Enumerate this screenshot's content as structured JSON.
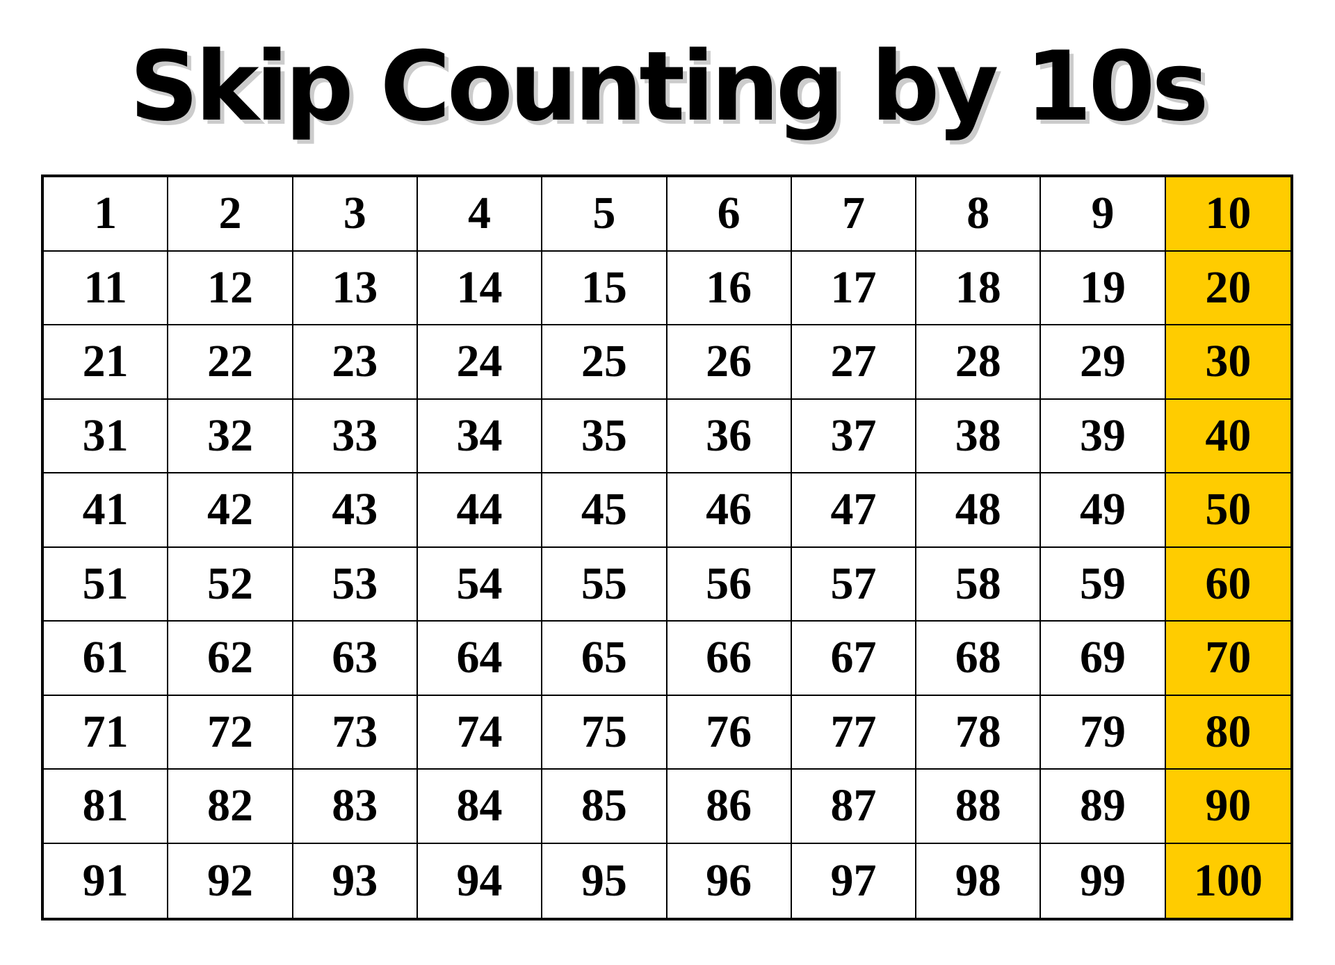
{
  "title": "Skip Counting by 10s",
  "colors": {
    "highlight": "#FFCC00",
    "border": "#000000",
    "title_shadow": "#CCCCCC"
  },
  "grid": {
    "highlight_column": 10,
    "rows": [
      [
        "1",
        "2",
        "3",
        "4",
        "5",
        "6",
        "7",
        "8",
        "9",
        "10"
      ],
      [
        "11",
        "12",
        "13",
        "14",
        "15",
        "16",
        "17",
        "18",
        "19",
        "20"
      ],
      [
        "21",
        "22",
        "23",
        "24",
        "25",
        "26",
        "27",
        "28",
        "29",
        "30"
      ],
      [
        "31",
        "32",
        "33",
        "34",
        "35",
        "36",
        "37",
        "38",
        "39",
        "40"
      ],
      [
        "41",
        "42",
        "43",
        "44",
        "45",
        "46",
        "47",
        "48",
        "49",
        "50"
      ],
      [
        "51",
        "52",
        "53",
        "54",
        "55",
        "56",
        "57",
        "58",
        "59",
        "60"
      ],
      [
        "61",
        "62",
        "63",
        "64",
        "65",
        "66",
        "67",
        "68",
        "69",
        "70"
      ],
      [
        "71",
        "72",
        "73",
        "74",
        "75",
        "76",
        "77",
        "78",
        "79",
        "80"
      ],
      [
        "81",
        "82",
        "83",
        "84",
        "85",
        "86",
        "87",
        "88",
        "89",
        "90"
      ],
      [
        "91",
        "92",
        "93",
        "94",
        "95",
        "96",
        "97",
        "98",
        "99",
        "100"
      ]
    ]
  }
}
